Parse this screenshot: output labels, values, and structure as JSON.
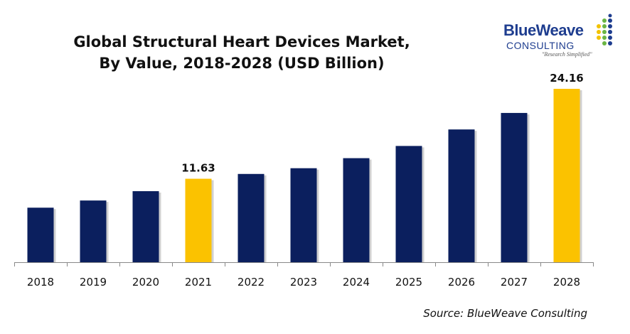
{
  "title_line1": "Global Structural Heart Devices Market,",
  "title_line2": "By Value, 2018-2028 (USD Billion)",
  "logo": {
    "name": "BlueWeave",
    "sub": "CONSULTING",
    "tagline": "\"Research Simplified\""
  },
  "source": "Source: BlueWeave Consulting",
  "colors": {
    "navy": "#0b1f5e",
    "highlight": "#fbc200"
  },
  "chart_data": {
    "type": "bar",
    "title": "Global Structural Heart Devices Market, By Value, 2018-2028 (USD Billion)",
    "categories": [
      "2018",
      "2019",
      "2020",
      "2021",
      "2022",
      "2023",
      "2024",
      "2025",
      "2026",
      "2027",
      "2028"
    ],
    "values": [
      7.6,
      8.6,
      9.9,
      11.63,
      12.3,
      13.1,
      14.5,
      16.2,
      18.5,
      20.8,
      24.16
    ],
    "highlight": [
      "2021",
      "2028"
    ],
    "data_labels": {
      "2021": "11.63",
      "2028": "24.16"
    },
    "ylim": [
      0,
      24.16
    ],
    "grid": false
  }
}
